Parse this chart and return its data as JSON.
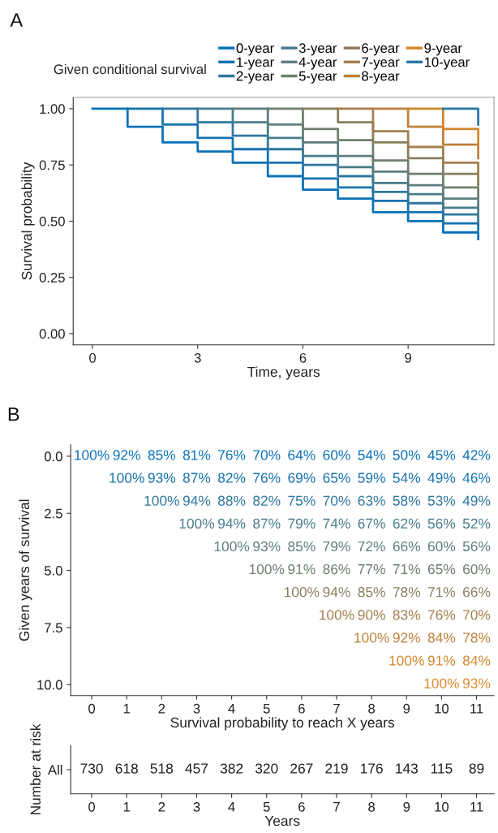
{
  "chart_data": [
    {
      "type": "step",
      "title": "A",
      "xlabel": "Time, years",
      "ylabel": "Survival probability",
      "legend_title": "Given conditional survival",
      "legend": "top",
      "xlim": [
        -0.55,
        11.45
      ],
      "xticks": [
        0,
        3,
        6,
        9
      ],
      "ylim": [
        -0.05,
        1.05
      ],
      "yticks": [
        {
          "value": 0,
          "label": "0.00"
        },
        {
          "value": 0.25,
          "label": "0.25"
        },
        {
          "value": 0.5,
          "label": "0.50"
        },
        {
          "value": 0.75,
          "label": "0.75"
        },
        {
          "value": 1,
          "label": "1.00"
        }
      ],
      "grid": false,
      "series": [
        {
          "name": "0-year",
          "color": "#0a72b8",
          "x": [
            0,
            1,
            2,
            3,
            4,
            5,
            6,
            7,
            8,
            9,
            10,
            11
          ],
          "values": [
            1.0,
            0.92,
            0.85,
            0.81,
            0.76,
            0.7,
            0.64,
            0.6,
            0.54,
            0.5,
            0.45,
            0.42
          ]
        },
        {
          "name": "1-year",
          "color": "#1673b0",
          "x": [
            1,
            2,
            3,
            4,
            5,
            6,
            7,
            8,
            9,
            10,
            11
          ],
          "values": [
            1.0,
            0.93,
            0.87,
            0.82,
            0.76,
            0.69,
            0.65,
            0.59,
            0.54,
            0.49,
            0.46
          ]
        },
        {
          "name": "2-year",
          "color": "#2f77a0",
          "x": [
            2,
            3,
            4,
            5,
            6,
            7,
            8,
            9,
            10,
            11
          ],
          "values": [
            1.0,
            0.94,
            0.88,
            0.82,
            0.75,
            0.7,
            0.63,
            0.58,
            0.53,
            0.49
          ]
        },
        {
          "name": "3-year",
          "color": "#4a7c8e",
          "x": [
            3,
            4,
            5,
            6,
            7,
            8,
            9,
            10,
            11
          ],
          "values": [
            1.0,
            0.94,
            0.87,
            0.79,
            0.74,
            0.67,
            0.62,
            0.56,
            0.52
          ]
        },
        {
          "name": "4-year",
          "color": "#5d7e7e",
          "x": [
            4,
            5,
            6,
            7,
            8,
            9,
            10,
            11
          ],
          "values": [
            1.0,
            0.93,
            0.85,
            0.79,
            0.72,
            0.66,
            0.6,
            0.56
          ]
        },
        {
          "name": "5-year",
          "color": "#6f7f6e",
          "x": [
            5,
            6,
            7,
            8,
            9,
            10,
            11
          ],
          "values": [
            1.0,
            0.91,
            0.86,
            0.77,
            0.71,
            0.65,
            0.6
          ]
        },
        {
          "name": "6-year",
          "color": "#897f5f",
          "x": [
            6,
            7,
            8,
            9,
            10,
            11
          ],
          "values": [
            1.0,
            0.94,
            0.85,
            0.78,
            0.71,
            0.66
          ]
        },
        {
          "name": "7-year",
          "color": "#a27f4d",
          "x": [
            7,
            8,
            9,
            10,
            11
          ],
          "values": [
            1.0,
            0.9,
            0.83,
            0.76,
            0.7
          ]
        },
        {
          "name": "8-year",
          "color": "#c0803a",
          "x": [
            8,
            9,
            10,
            11
          ],
          "values": [
            1.0,
            0.92,
            0.84,
            0.78
          ]
        },
        {
          "name": "9-year",
          "color": "#d4882c",
          "x": [
            9,
            10,
            11
          ],
          "values": [
            1.0,
            0.91,
            0.84
          ]
        },
        {
          "name": "10-year",
          "color": "#2a78a4",
          "x": [
            10,
            11
          ],
          "values": [
            1.0,
            0.93
          ]
        }
      ]
    },
    {
      "type": "heatmap",
      "title": "B",
      "xlabel": "Survival probability to reach X years",
      "ylabel": "Given years of survival",
      "categories": [
        "0",
        "1",
        "2",
        "3",
        "4",
        "5",
        "6",
        "7",
        "8",
        "9",
        "10",
        "11"
      ],
      "ylim": [
        10.48,
        -0.5
      ],
      "yticks": [
        {
          "value": 0,
          "label": "0.0"
        },
        {
          "value": 2.5,
          "label": "2.5"
        },
        {
          "value": 5,
          "label": "5.0"
        },
        {
          "value": 7.5,
          "label": "7.5"
        },
        {
          "value": 10,
          "label": "10.0"
        }
      ],
      "colors": [
        "#0a72b8",
        "#1673b0",
        "#2f77a0",
        "#4a7c8e",
        "#5d7e7e",
        "#6f7f6e",
        "#897f5f",
        "#a27f4d",
        "#c0803a",
        "#d4882c",
        "#e08a2a"
      ],
      "cells": [
        [
          100,
          92,
          85,
          81,
          76,
          70,
          64,
          60,
          54,
          50,
          45,
          42
        ],
        [
          null,
          100,
          93,
          87,
          82,
          76,
          69,
          65,
          59,
          54,
          49,
          46
        ],
        [
          null,
          null,
          100,
          94,
          88,
          82,
          75,
          70,
          63,
          58,
          53,
          49
        ],
        [
          null,
          null,
          null,
          100,
          94,
          87,
          79,
          74,
          67,
          62,
          56,
          52
        ],
        [
          null,
          null,
          null,
          null,
          100,
          93,
          85,
          79,
          72,
          66,
          60,
          56
        ],
        [
          null,
          null,
          null,
          null,
          null,
          100,
          91,
          86,
          77,
          71,
          65,
          60
        ],
        [
          null,
          null,
          null,
          null,
          null,
          null,
          100,
          94,
          85,
          78,
          71,
          66
        ],
        [
          null,
          null,
          null,
          null,
          null,
          null,
          null,
          100,
          90,
          83,
          76,
          70
        ],
        [
          null,
          null,
          null,
          null,
          null,
          null,
          null,
          null,
          100,
          92,
          84,
          78
        ],
        [
          null,
          null,
          null,
          null,
          null,
          null,
          null,
          null,
          null,
          100,
          91,
          84
        ],
        [
          null,
          null,
          null,
          null,
          null,
          null,
          null,
          null,
          null,
          null,
          100,
          93
        ]
      ],
      "cell_labels": [
        [
          "100%",
          "92%",
          "85%",
          "81%",
          "76%",
          "70%",
          "64%",
          "60%",
          "54%",
          "50%",
          "45%",
          "42%"
        ],
        [
          null,
          "100%",
          "93%",
          "87%",
          "82%",
          "76%",
          "69%",
          "65%",
          "59%",
          "54%",
          "49%",
          "46%"
        ],
        [
          null,
          null,
          "100%",
          "94%",
          "88%",
          "82%",
          "75%",
          "70%",
          "63%",
          "58%",
          "53%",
          "49%"
        ],
        [
          null,
          null,
          null,
          "100%",
          "94%",
          "87%",
          "79%",
          "74%",
          "67%",
          "62%",
          "56%",
          "52%"
        ],
        [
          null,
          null,
          null,
          null,
          "100%",
          "93%",
          "85%",
          "79%",
          "72%",
          "66%",
          "60%",
          "56%"
        ],
        [
          null,
          null,
          null,
          null,
          null,
          "100%",
          "91%",
          "86%",
          "77%",
          "71%",
          "65%",
          "60%"
        ],
        [
          null,
          null,
          null,
          null,
          null,
          null,
          "100%",
          "94%",
          "85%",
          "78%",
          "71%",
          "66%"
        ],
        [
          null,
          null,
          null,
          null,
          null,
          null,
          null,
          "100%",
          "90%",
          "83%",
          "76%",
          "70%"
        ],
        [
          null,
          null,
          null,
          null,
          null,
          null,
          null,
          null,
          "100%",
          "92%",
          "84%",
          "78%"
        ],
        [
          null,
          null,
          null,
          null,
          null,
          null,
          null,
          null,
          null,
          "100%",
          "91%",
          "84%"
        ],
        [
          null,
          null,
          null,
          null,
          null,
          null,
          null,
          null,
          null,
          null,
          "100%",
          "93%"
        ]
      ]
    },
    {
      "type": "heatmap",
      "xlabel": "Years",
      "ylabel": "Number at risk",
      "categories": [
        "0",
        "1",
        "2",
        "3",
        "4",
        "5",
        "6",
        "7",
        "8",
        "9",
        "10",
        "11"
      ],
      "y_categories": [
        "All"
      ],
      "colors": [
        "#222222"
      ],
      "data_labels": true,
      "cells": [
        [
          730,
          618,
          518,
          457,
          382,
          320,
          267,
          219,
          176,
          143,
          115,
          89
        ]
      ]
    }
  ]
}
